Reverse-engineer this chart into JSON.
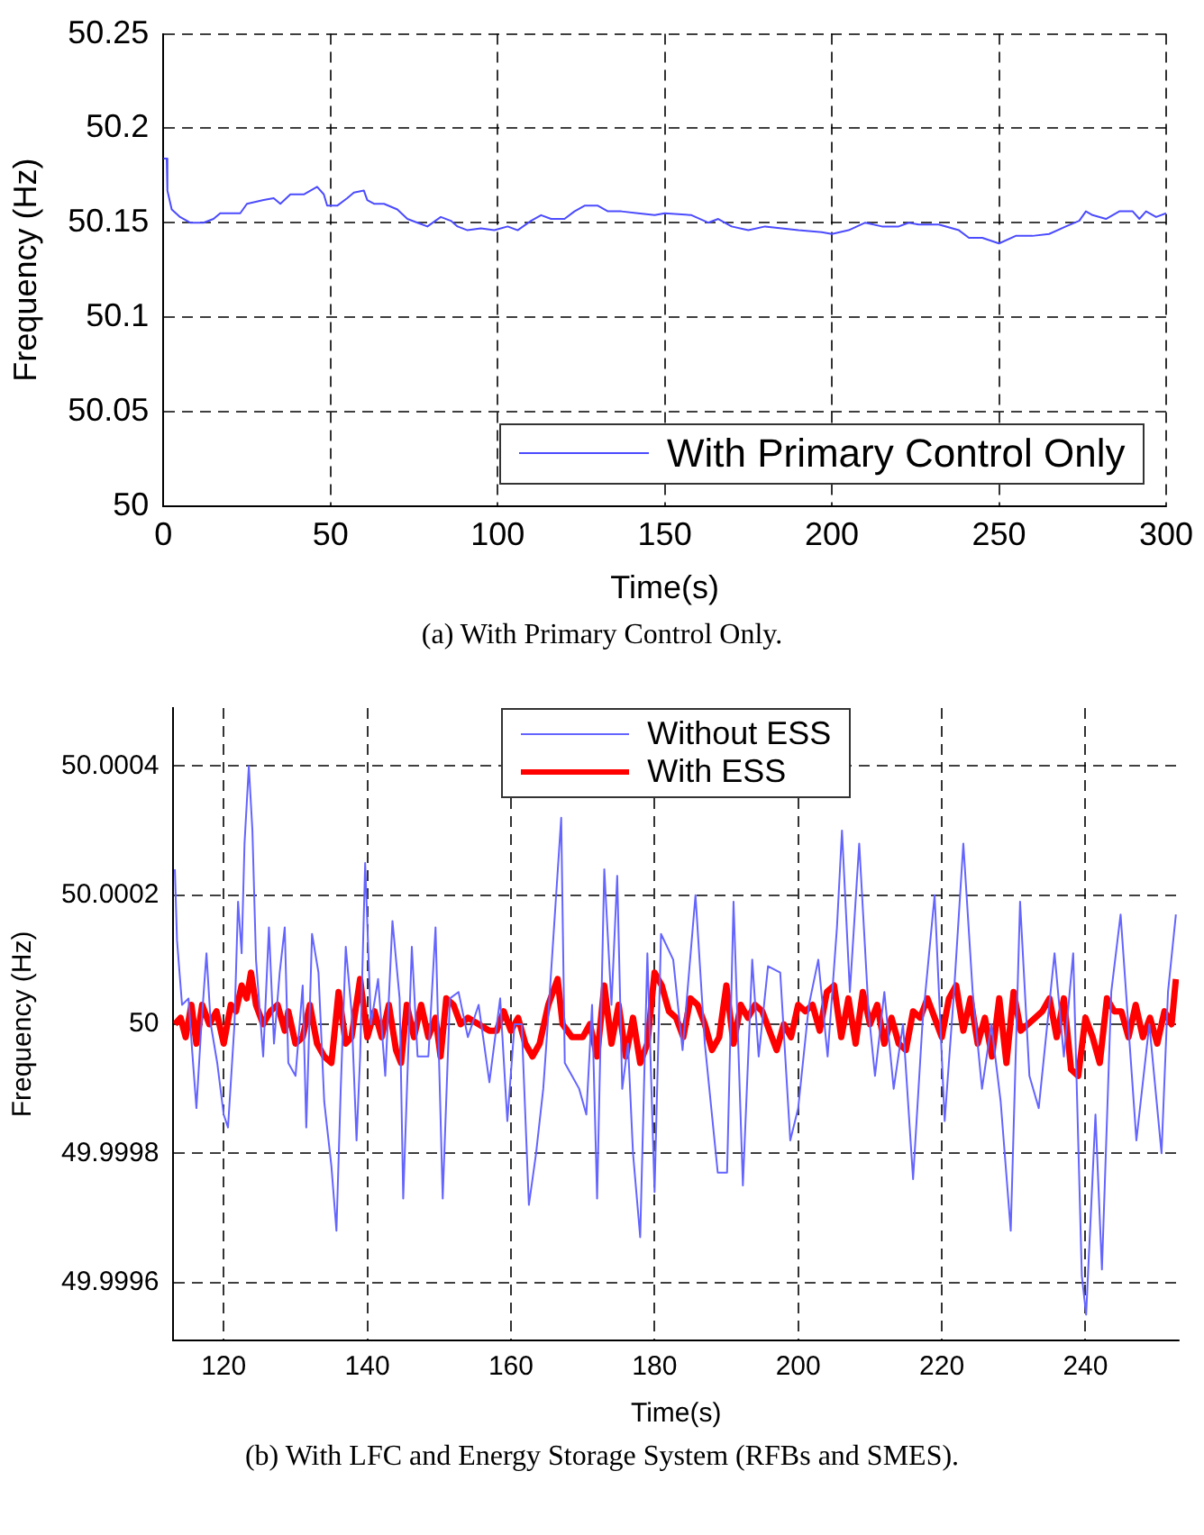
{
  "chart_data": [
    {
      "type": "line",
      "xlabel": "Time(s)",
      "ylabel": "Frequency (Hz)",
      "xlim": [
        0,
        300
      ],
      "xticks": [
        0,
        50,
        100,
        150,
        200,
        250,
        300
      ],
      "ylim": [
        50,
        50.25
      ],
      "yticks": [
        50,
        50.05,
        50.1,
        50.15,
        50.2,
        50.25
      ],
      "grid": true,
      "legend": "bottom right",
      "marker": "none",
      "annotations": [
        "(a) With Primary Control Only."
      ],
      "series": [
        {
          "name": "With Primary Control Only",
          "color": "#4b4bff",
          "x": [
            0,
            1,
            1.2,
            2.5,
            5,
            8,
            12,
            15,
            17,
            23,
            25,
            30,
            33,
            35,
            38,
            42,
            44,
            46,
            48,
            49,
            52,
            55,
            57,
            60,
            61,
            63,
            66,
            70,
            73,
            76,
            79,
            83,
            86,
            88,
            91,
            95,
            99,
            103,
            106,
            110,
            113,
            116,
            120,
            123,
            126,
            130,
            133,
            137,
            142,
            147,
            150,
            158,
            163,
            166,
            170,
            175,
            180,
            185,
            190,
            197,
            200,
            205,
            210,
            215,
            220,
            223,
            226,
            232,
            238,
            241,
            245,
            250,
            255,
            260,
            265,
            270,
            274,
            276,
            278,
            282,
            286,
            290,
            292,
            294,
            297,
            300
          ],
          "values": [
            50.184,
            50.184,
            50.167,
            50.157,
            50.153,
            50.15,
            50.15,
            50.152,
            50.155,
            50.155,
            50.16,
            50.162,
            50.163,
            50.16,
            50.165,
            50.165,
            50.167,
            50.169,
            50.165,
            50.159,
            50.159,
            50.163,
            50.166,
            50.167,
            50.162,
            50.16,
            50.16,
            50.157,
            50.152,
            50.15,
            50.148,
            50.153,
            50.151,
            50.148,
            50.146,
            50.147,
            50.146,
            50.148,
            50.146,
            50.151,
            50.154,
            50.152,
            50.152,
            50.156,
            50.159,
            50.159,
            50.156,
            50.156,
            50.155,
            50.154,
            50.155,
            50.154,
            50.15,
            50.152,
            50.148,
            50.146,
            50.148,
            50.147,
            50.146,
            50.145,
            50.144,
            50.146,
            50.15,
            50.148,
            50.148,
            50.15,
            50.149,
            50.149,
            50.146,
            50.142,
            50.142,
            50.139,
            50.143,
            50.143,
            50.144,
            50.148,
            50.151,
            50.156,
            50.154,
            50.152,
            50.156,
            50.156,
            50.152,
            50.156,
            50.153,
            50.155
          ]
        }
      ]
    },
    {
      "type": "line",
      "xlabel": "Time(s)",
      "ylabel": "Frequency (Hz)",
      "xlim": [
        113,
        253
      ],
      "xticks": [
        120,
        140,
        160,
        180,
        200,
        220,
        240
      ],
      "ylim": [
        49.99951,
        50.00049
      ],
      "yticks": [
        49.9996,
        49.9998,
        50,
        50.0002,
        50.0004
      ],
      "grid": true,
      "legend": "top",
      "marker": "none",
      "annotations": [
        "(b) With LFC and Energy Storage System (RFBs and SMES)."
      ],
      "series": [
        {
          "name": "Without ESS",
          "color": "#6464ff",
          "x": [
            113.2,
            113.5,
            114.2,
            115.1,
            115.6,
            116.2,
            116.9,
            117.6,
            118.2,
            119.1,
            120,
            120.6,
            121.5,
            122,
            122.5,
            122.9,
            123.5,
            124,
            124.5,
            125.5,
            126.3,
            127,
            127.8,
            128.5,
            129,
            130,
            131,
            131.5,
            132.3,
            133.2,
            134,
            135,
            135.7,
            136.3,
            137,
            137.8,
            138.5,
            139,
            139.7,
            140.5,
            141.5,
            142.5,
            143.5,
            144.5,
            145,
            146.2,
            147,
            148.5,
            149.5,
            150.5,
            151.5,
            152.7,
            154,
            155.5,
            157,
            158.5,
            159.5,
            160.5,
            161.5,
            162.5,
            163.5,
            164.5,
            165,
            166,
            167,
            167.5,
            168.5,
            169.5,
            170.5,
            171.3,
            172,
            173,
            174,
            174.8,
            175.5,
            176.3,
            177,
            178,
            179,
            180,
            180.9,
            182.6,
            183.9,
            185.7,
            187,
            188.8,
            190.1,
            191,
            192.3,
            193.6,
            194.5,
            195.8,
            197.5,
            198.9,
            200,
            201.5,
            202.8,
            204.1,
            205.4,
            206.1,
            207.2,
            208.5,
            209.8,
            210.7,
            212,
            213.3,
            214.6,
            216,
            217.3,
            219,
            220.4,
            221.7,
            223,
            224.3,
            225.6,
            226.9,
            228.2,
            229.6,
            230.9,
            232.2,
            233.5,
            235.7,
            237,
            238.3,
            239.5,
            240.1,
            241.4,
            242.3,
            243.6,
            244.9,
            247.1,
            248.9,
            250.6,
            251.5,
            252.6
          ],
          "values": [
            50.00024,
            50.00013,
            50.00003,
            50.00004,
            49.99996,
            49.99987,
            50,
            50.00011,
            50,
            49.99994,
            49.99986,
            49.99984,
            50,
            50.00019,
            50.00011,
            50.00028,
            50.0004,
            50.0003,
            50.0001,
            49.99995,
            50.00015,
            49.99997,
            50.00008,
            50.00015,
            49.99994,
            49.99992,
            50.00006,
            49.99984,
            50.00014,
            50.00008,
            49.99988,
            49.99978,
            49.99968,
            49.9999,
            50.00012,
            50.00002,
            49.99982,
            49.99995,
            50.00025,
            50,
            50.00007,
            49.99992,
            50.00016,
            50.00004,
            49.99973,
            50.00012,
            49.99995,
            49.99995,
            50.00015,
            49.99973,
            50.00004,
            50.00005,
            49.99998,
            50.00003,
            49.99991,
            50.00004,
            49.99985,
            50,
            50,
            49.99972,
            49.9998,
            49.9999,
            49.99998,
            50.00015,
            50.00032,
            49.99994,
            49.99992,
            49.9999,
            49.99986,
            50.00003,
            49.99973,
            50.00024,
            50.00003,
            50.00023,
            49.9999,
            49.99997,
            49.9998,
            49.99967,
            50.00011,
            49.99974,
            50.00014,
            50.0001,
            49.99996,
            50.0002,
            49.99997,
            49.99977,
            49.99977,
            50.00019,
            49.99975,
            50.0001,
            49.99995,
            50.00009,
            50.00008,
            49.99982,
            49.99987,
            50.00003,
            50.0001,
            49.99995,
            50.00015,
            50.0003,
            50.00005,
            50.00028,
            50.00002,
            49.99992,
            50.00005,
            49.9999,
            50,
            49.99976,
            50,
            50.0002,
            49.99985,
            50.00005,
            50.00028,
            50.00005,
            49.9999,
            50,
            49.99988,
            49.99968,
            50.00019,
            49.99992,
            49.99987,
            50.00011,
            49.99995,
            50.00011,
            49.99961,
            49.99955,
            49.99986,
            49.99962,
            50.00005,
            50.00017,
            49.99982,
            50,
            49.9998,
            50.00005,
            50.00017
          ]
        },
        {
          "name": "With ESS",
          "color": "#ff0000",
          "x": [
            113.2,
            114,
            114.7,
            115.5,
            116.2,
            117,
            118,
            119,
            120,
            121,
            121.7,
            122.5,
            123.2,
            123.8,
            124.5,
            125.5,
            126.5,
            127.5,
            128.5,
            129,
            130,
            131,
            132,
            133,
            134,
            135,
            136,
            137,
            137.8,
            139,
            140,
            141,
            142,
            143,
            144,
            144.7,
            145.5,
            146.5,
            147.5,
            148.5,
            149.5,
            150.2,
            151,
            152,
            153,
            154,
            155.5,
            157,
            158,
            159,
            160,
            161,
            162,
            163,
            164,
            165.2,
            166.5,
            167.2,
            168.5,
            170,
            171,
            172,
            173,
            174,
            175,
            176,
            177,
            178,
            179,
            180,
            181,
            182,
            183,
            184,
            185,
            186,
            187,
            188,
            189,
            190,
            191,
            192,
            193,
            194,
            195,
            196,
            197,
            198,
            199,
            200,
            201,
            202,
            203,
            204,
            205,
            206,
            207,
            208,
            209,
            210,
            211,
            212,
            213,
            214,
            215,
            216,
            217,
            218,
            219,
            220,
            221,
            222,
            223,
            224,
            225,
            226,
            227,
            228,
            229,
            230,
            231,
            232,
            233,
            234,
            235,
            236,
            237,
            238,
            239,
            240,
            241,
            242,
            243,
            244,
            245,
            246,
            247,
            248,
            249,
            250,
            251,
            252,
            252.6
          ],
          "values": [
            50,
            50.00001,
            49.99998,
            50.00003,
            49.99997,
            50.00003,
            50,
            50.00002,
            49.99997,
            50.00003,
            50.00002,
            50.00006,
            50.00004,
            50.00008,
            50.00003,
            50,
            50.00002,
            50.00003,
            49.99999,
            50.00002,
            49.99997,
            49.99998,
            50.00003,
            49.99997,
            49.99995,
            49.99994,
            50.00005,
            49.99997,
            49.99998,
            50.00007,
            49.99998,
            50.00002,
            49.99998,
            50.00003,
            49.99996,
            49.99994,
            50.00003,
            49.99998,
            50.00003,
            49.99998,
            50.00001,
            49.99995,
            50.00004,
            50.00003,
            50,
            50.00001,
            50,
            49.99999,
            49.99999,
            50.00002,
            49.99999,
            50.00001,
            49.99997,
            49.99995,
            49.99997,
            50.00003,
            50.00007,
            50,
            49.99998,
            49.99998,
            50,
            49.99995,
            50.00006,
            49.99997,
            50.00003,
            49.99995,
            50.00001,
            49.99994,
            49.99997,
            50.00008,
            50.00006,
            50.00002,
            50.00001,
            49.99998,
            50.00004,
            50.00003,
            50,
            49.99996,
            49.99998,
            50.00006,
            49.99997,
            50.00003,
            50.00001,
            50.00003,
            50.00002,
            49.99999,
            49.99996,
            50,
            49.99998,
            50.00003,
            50.00002,
            50.00003,
            49.99999,
            50.00005,
            50.00006,
            49.99998,
            50.00004,
            49.99997,
            50.00005,
            50,
            50.00003,
            49.99997,
            50.00001,
            49.99997,
            49.99996,
            50.00002,
            50.00001,
            50.00004,
            50.00001,
            49.99998,
            50.00004,
            50.00006,
            49.99999,
            50.00004,
            49.99997,
            50.00001,
            49.99995,
            50.00004,
            49.99994,
            50.00005,
            49.99999,
            50,
            50.00001,
            50.00002,
            50.00004,
            49.99998,
            50.00004,
            49.99993,
            49.99992,
            50.00001,
            49.99998,
            49.99994,
            50.00004,
            50.00002,
            50.00002,
            49.99998,
            50.00003,
            49.99998,
            50.00001,
            49.99997,
            50.00002,
            50,
            50.00007
          ]
        }
      ]
    }
  ]
}
